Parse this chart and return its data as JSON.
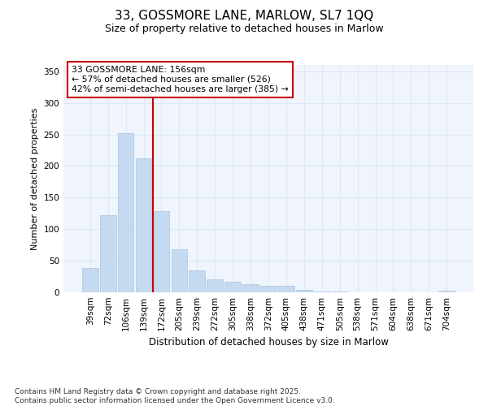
{
  "title1": "33, GOSSMORE LANE, MARLOW, SL7 1QQ",
  "title2": "Size of property relative to detached houses in Marlow",
  "xlabel": "Distribution of detached houses by size in Marlow",
  "ylabel": "Number of detached properties",
  "categories": [
    "39sqm",
    "72sqm",
    "106sqm",
    "139sqm",
    "172sqm",
    "205sqm",
    "239sqm",
    "272sqm",
    "305sqm",
    "338sqm",
    "372sqm",
    "405sqm",
    "438sqm",
    "471sqm",
    "505sqm",
    "538sqm",
    "571sqm",
    "604sqm",
    "638sqm",
    "671sqm",
    "704sqm"
  ],
  "values": [
    38,
    122,
    252,
    212,
    128,
    68,
    35,
    20,
    17,
    13,
    10,
    10,
    4,
    1,
    1,
    0,
    0,
    0,
    0,
    0,
    3
  ],
  "bar_color": "#c5d9f0",
  "bar_edge_color": "#a8c4e0",
  "vline_color": "#cc0000",
  "vline_x_index": 3.5,
  "annotation_title": "33 GOSSMORE LANE: 156sqm",
  "annotation_line2": "← 57% of detached houses are smaller (526)",
  "annotation_line3": "42% of semi-detached houses are larger (385) →",
  "ylim": [
    0,
    360
  ],
  "yticks": [
    0,
    50,
    100,
    150,
    200,
    250,
    300,
    350
  ],
  "footer": "Contains HM Land Registry data © Crown copyright and database right 2025.\nContains public sector information licensed under the Open Government Licence v3.0.",
  "bg_color": "#ffffff",
  "plot_bg_color": "#f0f4fc",
  "grid_color": "#dce8f8"
}
